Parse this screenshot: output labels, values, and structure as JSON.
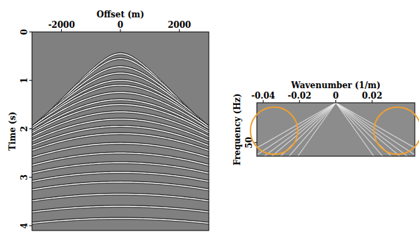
{
  "chart_data": [
    {
      "type": "seismic",
      "x_label": "Offset (m)",
      "y_label": "Time (s)",
      "xlim": [
        -3000,
        3000
      ],
      "xticks": [
        -2000,
        0,
        2000
      ],
      "ylim": [
        0,
        4.1
      ],
      "yticks": [
        0,
        1,
        2,
        3,
        4
      ],
      "color": "#808080",
      "events": [
        {
          "t0": 0.45,
          "velocity": 1500
        },
        {
          "t0": 0.55,
          "velocity": 1550
        },
        {
          "t0": 0.72,
          "velocity": 1620
        },
        {
          "t0": 0.85,
          "velocity": 1700
        },
        {
          "t0": 1.0,
          "velocity": 1780
        },
        {
          "t0": 1.1,
          "velocity": 1850
        },
        {
          "t0": 1.25,
          "velocity": 1930
        },
        {
          "t0": 1.4,
          "velocity": 2000
        },
        {
          "t0": 1.5,
          "velocity": 2080
        },
        {
          "t0": 1.65,
          "velocity": 2150
        },
        {
          "t0": 1.8,
          "velocity": 2230
        },
        {
          "t0": 1.95,
          "velocity": 2300
        },
        {
          "t0": 2.1,
          "velocity": 2400
        },
        {
          "t0": 2.3,
          "velocity": 2500
        },
        {
          "t0": 2.5,
          "velocity": 2600
        },
        {
          "t0": 2.7,
          "velocity": 2720
        },
        {
          "t0": 2.9,
          "velocity": 2850
        },
        {
          "t0": 3.1,
          "velocity": 2980
        },
        {
          "t0": 3.35,
          "velocity": 3100
        },
        {
          "t0": 3.6,
          "velocity": 3250
        },
        {
          "t0": 3.85,
          "velocity": 3400
        }
      ]
    },
    {
      "type": "spectrum",
      "x_label": "Wavenumber (1/m)",
      "y_label": "Frequency (Hz)",
      "xlim": [
        -0.0435,
        0.0435
      ],
      "xticks": [
        -0.04,
        -0.02,
        0,
        0.02
      ],
      "ylim": [
        0,
        67
      ],
      "yticks": [
        50
      ],
      "color": "#8c8c8c",
      "dips": [
        1300,
        1500,
        1700,
        1900,
        2200,
        2600,
        3200
      ],
      "highlights": [
        {
          "x": -0.034,
          "y": 35
        },
        {
          "x": 0.034,
          "y": 35
        }
      ],
      "highlight_color": "#f0a030"
    }
  ]
}
